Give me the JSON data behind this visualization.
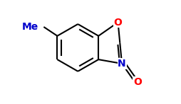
{
  "bg_color": "#ffffff",
  "bond_color": "#000000",
  "bond_width": 1.5,
  "atom_O_color": "#ff0000",
  "atom_N_color": "#0000cc",
  "atom_Me_color": "#0000cc",
  "font_size_atom": 10,
  "figsize": [
    2.55,
    1.47
  ],
  "dpi": 100,
  "xlim": [
    -1.0,
    1.6
  ],
  "ylim": [
    -1.3,
    1.1
  ]
}
